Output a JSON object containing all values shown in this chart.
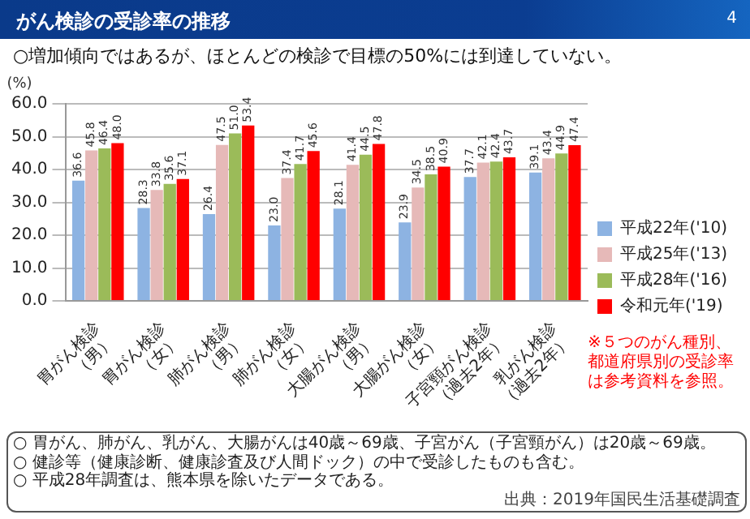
{
  "chart_data": {
    "type": "bar",
    "title": "がん検診の受診率の推移",
    "subtitle": "○増加傾向ではあるが、ほとんどの検診で目標の50%には到達していない。",
    "ylabel": "(%)",
    "categories": [
      "胃がん検診（男）",
      "胃がん検診（女）",
      "肺がん検診（男）",
      "肺がん検診（女）",
      "大腸がん検診（男）",
      "大腸がん検診（女）",
      "子宮頸がん検診（過去2年）",
      "乳がん検診（過去2年）"
    ],
    "series": [
      {
        "name": "平成22年('10)",
        "color": "#8db3e2",
        "values": [
          36.6,
          28.3,
          26.4,
          23.0,
          28.1,
          23.9,
          37.7,
          39.1
        ],
        "value_labels": [
          "36.6",
          "28.3",
          "26.4",
          "23.0",
          "28.1",
          "23.9",
          "37.7",
          "39.1"
        ]
      },
      {
        "name": "平成25年('13)",
        "color": "#e6b9b8",
        "values": [
          45.8,
          33.8,
          47.5,
          37.4,
          41.4,
          34.5,
          42.1,
          43.4
        ],
        "value_labels": [
          "45.8",
          "33.8",
          "47.5",
          "37.4",
          "41.4",
          "34.5",
          "42.1",
          "43.4"
        ]
      },
      {
        "name": "平成28年('16)",
        "color": "#9bbb59",
        "values": [
          46.4,
          35.6,
          51.0,
          41.7,
          44.5,
          38.5,
          42.4,
          44.9
        ],
        "value_labels": [
          "46.4",
          "35.6",
          "51.0",
          "41.7",
          "44.5",
          "38.5",
          "42.4",
          "44.9"
        ]
      },
      {
        "name": "令和元年('19)",
        "color": "#ff0000",
        "values": [
          48.0,
          37.1,
          53.4,
          45.6,
          47.8,
          40.9,
          43.7,
          47.4
        ],
        "value_labels": [
          "48.0",
          "37.1",
          "53.4",
          "45.6",
          "47.8",
          "40.9",
          "43.7",
          "47.4"
        ]
      }
    ],
    "ylim": [
      0,
      60
    ],
    "yticks": [
      {
        "value": 0,
        "label": "0.0"
      },
      {
        "value": 10,
        "label": "10.0"
      },
      {
        "value": 20,
        "label": "20.0"
      },
      {
        "value": 30,
        "label": "30.0"
      },
      {
        "value": 40,
        "label": "40.0"
      },
      {
        "value": 50,
        "label": "50.0"
      },
      {
        "value": 60,
        "label": "60.0"
      }
    ],
    "grid": "y",
    "legend": "right",
    "annotations": [
      "※５つのがん種別、都道府県別の受診率は参考資料を参照。",
      "○ 胃がん、肺がん、乳がん、大腸がんは40歳～69歳、子宮がん（子宮頸がん）は20歳～69歳。",
      "○ 健診等（健康診断、健康診査及び人間ドック）の中で受診したものも含む。",
      "○ 平成28年調査は、熊本県を除いたデータである。",
      "出典：2019年国民生活基礎調査",
      "4"
    ]
  }
}
